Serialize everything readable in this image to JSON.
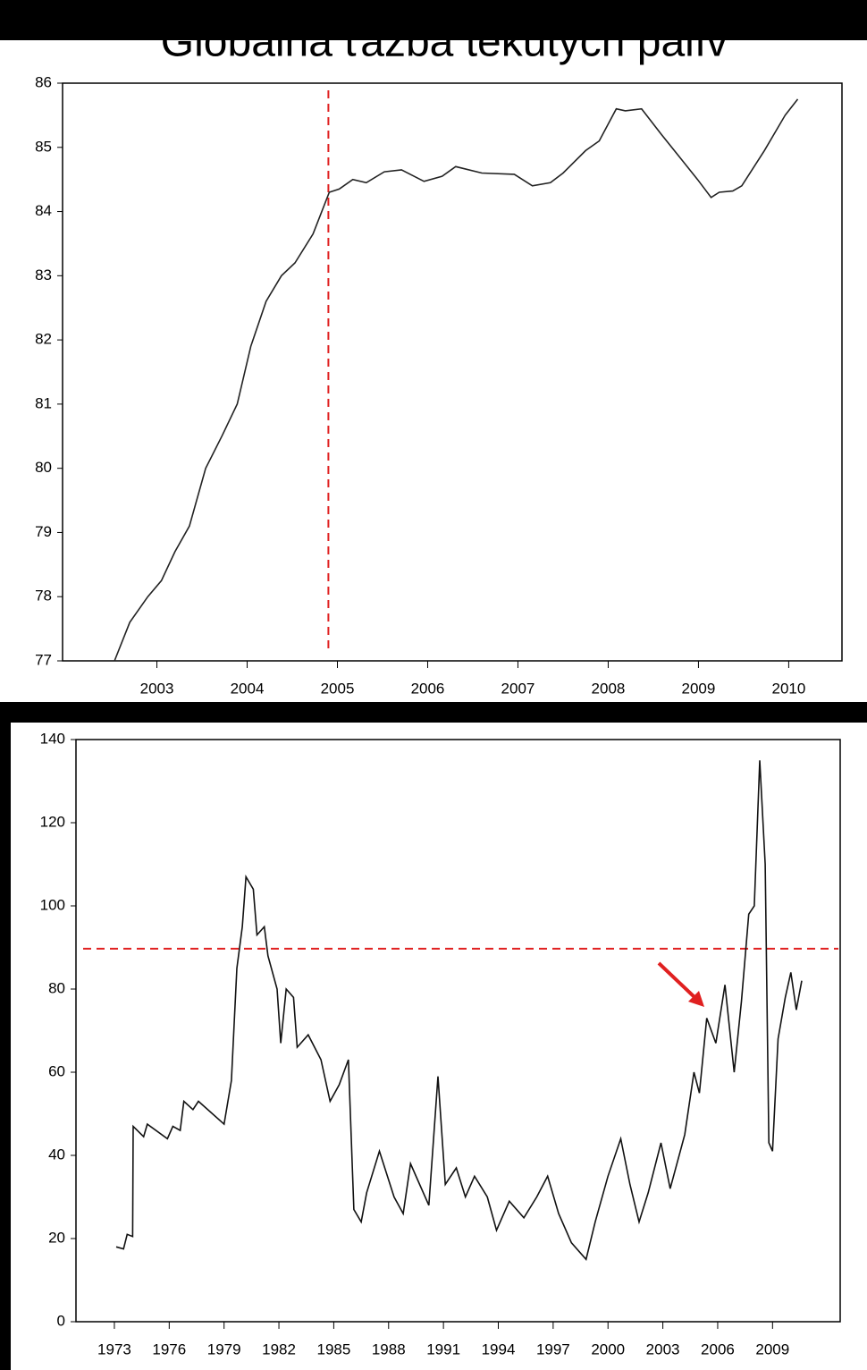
{
  "chart_data": [
    {
      "type": "line",
      "title": "Globálna ťažba tekutých palív",
      "xlim": [
        2002.455,
        2011.09
      ],
      "ylim": [
        77,
        86
      ],
      "xticks": [
        {
          "value": 2003.5,
          "label": "2003"
        },
        {
          "value": 2004.5,
          "label": "2004"
        },
        {
          "value": 2005.5,
          "label": "2005"
        },
        {
          "value": 2006.5,
          "label": "2006"
        },
        {
          "value": 2007.5,
          "label": "2007"
        },
        {
          "value": 2008.5,
          "label": "2008"
        },
        {
          "value": 2009.5,
          "label": "2009"
        },
        {
          "value": 2010.5,
          "label": "2010"
        }
      ],
      "yticks": [
        77,
        78,
        79,
        80,
        81,
        82,
        83,
        84,
        85,
        86
      ],
      "color": "#222222",
      "x": [
        2003.03,
        2003.2,
        2003.4,
        2003.55,
        2003.7,
        2003.86,
        2004.04,
        2004.22,
        2004.39,
        2004.54,
        2004.71,
        2004.88,
        2005.03,
        2005.23,
        2005.41,
        2005.52,
        2005.67,
        2005.82,
        2006.02,
        2006.21,
        2006.46,
        2006.66,
        2006.81,
        2007.1,
        2007.46,
        2007.66,
        2007.86,
        2008.0,
        2008.25,
        2008.4,
        2008.59,
        2008.69,
        2008.87,
        2009.09,
        2009.29,
        2009.49,
        2009.64,
        2009.73,
        2009.88,
        2009.98,
        2010.23,
        2010.46,
        2010.6
      ],
      "values": [
        77.0,
        77.6,
        78.0,
        78.25,
        78.7,
        79.1,
        80.0,
        80.5,
        81.0,
        81.9,
        82.6,
        83.0,
        83.2,
        83.65,
        84.3,
        84.35,
        84.5,
        84.45,
        84.62,
        84.65,
        84.47,
        84.55,
        84.7,
        84.6,
        84.58,
        84.4,
        84.45,
        84.6,
        84.95,
        85.1,
        85.6,
        85.57,
        85.6,
        85.2,
        84.85,
        84.5,
        84.22,
        84.3,
        84.32,
        84.4,
        84.95,
        85.5,
        85.75
      ],
      "reference_line": {
        "axis": "x",
        "value": 2005.4,
        "color": "#e02020"
      }
    },
    {
      "type": "line",
      "xlim": [
        1970.9,
        2012.7
      ],
      "ylim": [
        0,
        140
      ],
      "xticks": [
        1973,
        1976,
        1979,
        1982,
        1985,
        1988,
        1991,
        1994,
        1997,
        2000,
        2003,
        2006,
        2009
      ],
      "yticks": [
        0,
        20,
        40,
        60,
        80,
        100,
        120,
        140
      ],
      "color": "#111111",
      "x": [
        1973.1,
        1973.5,
        1973.7,
        1974.0,
        1974.03,
        1974.6,
        1974.8,
        1975.9,
        1976.2,
        1976.6,
        1976.8,
        1977.3,
        1977.6,
        1979.0,
        1979.4,
        1979.7,
        1980.0,
        1980.2,
        1980.6,
        1980.8,
        1981.2,
        1981.4,
        1981.9,
        1982.1,
        1982.4,
        1982.8,
        1983.0,
        1983.6,
        1984.3,
        1984.8,
        1985.3,
        1985.8,
        1986.1,
        1986.5,
        1986.8,
        1987.5,
        1988.3,
        1988.8,
        1989.2,
        1989.7,
        1990.2,
        1990.7,
        1991.1,
        1991.7,
        1992.2,
        1992.7,
        1993.4,
        1993.9,
        1994.6,
        1995.4,
        1996.1,
        1996.7,
        1997.3,
        1998.0,
        1998.8,
        1999.3,
        2000.0,
        2000.7,
        2001.2,
        2001.7,
        2002.2,
        2002.9,
        2003.4,
        2004.2,
        2004.7,
        2005.0,
        2005.4,
        2005.9,
        2006.4,
        2006.9,
        2007.3,
        2007.7,
        2008.0,
        2008.3,
        2008.6,
        2008.8,
        2009.0,
        2009.3,
        2009.7,
        2010.0,
        2010.3,
        2010.6
      ],
      "values": [
        18,
        17.5,
        21,
        20.5,
        47,
        44.5,
        47.5,
        44,
        47,
        46,
        53,
        51,
        53,
        47.5,
        58,
        85,
        95,
        107,
        104,
        93,
        95,
        88,
        80,
        67,
        80,
        78,
        66,
        69,
        63,
        53,
        57,
        63,
        27,
        24,
        31,
        41,
        30,
        26,
        38,
        33,
        28,
        59,
        33,
        37,
        30,
        35,
        30,
        22,
        29,
        25,
        30,
        35,
        26,
        19,
        15,
        24,
        35,
        44,
        33,
        24,
        31,
        43,
        32,
        45,
        60,
        55,
        73,
        67,
        81,
        60,
        77,
        98,
        100,
        135,
        110,
        43,
        41,
        68,
        78,
        84,
        75,
        82
      ],
      "reference_line": {
        "axis": "y",
        "value": 89.7,
        "color": "#e02020"
      }
    }
  ]
}
